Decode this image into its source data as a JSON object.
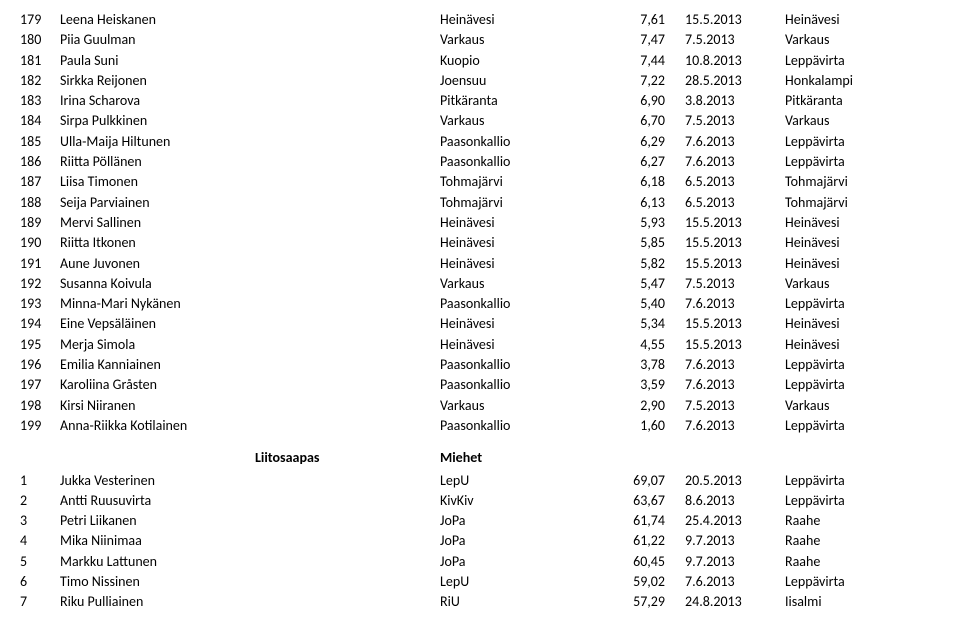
{
  "table1": {
    "rows": [
      {
        "rank": "179",
        "name": "Leena Heiskanen",
        "loc": "Heinävesi",
        "score": "7,61",
        "date": "15.5.2013",
        "place": "Heinävesi"
      },
      {
        "rank": "180",
        "name": "Piia Guulman",
        "loc": "Varkaus",
        "score": "7,47",
        "date": "7.5.2013",
        "place": "Varkaus"
      },
      {
        "rank": "181",
        "name": "Paula Suni",
        "loc": "Kuopio",
        "score": "7,44",
        "date": "10.8.2013",
        "place": "Leppävirta"
      },
      {
        "rank": "182",
        "name": "Sirkka Reijonen",
        "loc": "Joensuu",
        "score": "7,22",
        "date": "28.5.2013",
        "place": "Honkalampi"
      },
      {
        "rank": "183",
        "name": "Irina Scharova",
        "loc": "Pitkäranta",
        "score": "6,90",
        "date": "3.8.2013",
        "place": "Pitkäranta"
      },
      {
        "rank": "184",
        "name": "Sirpa Pulkkinen",
        "loc": "Varkaus",
        "score": "6,70",
        "date": "7.5.2013",
        "place": "Varkaus"
      },
      {
        "rank": "185",
        "name": "Ulla-Maija Hiltunen",
        "loc": "Paasonkallio",
        "score": "6,29",
        "date": "7.6.2013",
        "place": "Leppävirta"
      },
      {
        "rank": "186",
        "name": "Riitta Pöllänen",
        "loc": "Paasonkallio",
        "score": "6,27",
        "date": "7.6.2013",
        "place": "Leppävirta"
      },
      {
        "rank": "187",
        "name": "Liisa Timonen",
        "loc": "Tohmajärvi",
        "score": "6,18",
        "date": "6.5.2013",
        "place": "Tohmajärvi"
      },
      {
        "rank": "188",
        "name": "Seija Parviainen",
        "loc": "Tohmajärvi",
        "score": "6,13",
        "date": "6.5.2013",
        "place": "Tohmajärvi"
      },
      {
        "rank": "189",
        "name": "Mervi Sallinen",
        "loc": "Heinävesi",
        "score": "5,93",
        "date": "15.5.2013",
        "place": "Heinävesi"
      },
      {
        "rank": "190",
        "name": "Riitta Itkonen",
        "loc": "Heinävesi",
        "score": "5,85",
        "date": "15.5.2013",
        "place": "Heinävesi"
      },
      {
        "rank": "191",
        "name": "Aune Juvonen",
        "loc": "Heinävesi",
        "score": "5,82",
        "date": "15.5.2013",
        "place": "Heinävesi"
      },
      {
        "rank": "192",
        "name": "Susanna Koivula",
        "loc": "Varkaus",
        "score": "5,47",
        "date": "7.5.2013",
        "place": "Varkaus"
      },
      {
        "rank": "193",
        "name": "Minna-Mari Nykänen",
        "loc": "Paasonkallio",
        "score": "5,40",
        "date": "7.6.2013",
        "place": "Leppävirta"
      },
      {
        "rank": "194",
        "name": "Eine Vepsäläinen",
        "loc": "Heinävesi",
        "score": "5,34",
        "date": "15.5.2013",
        "place": "Heinävesi"
      },
      {
        "rank": "195",
        "name": "Merja Simola",
        "loc": "Heinävesi",
        "score": "4,55",
        "date": "15.5.2013",
        "place": "Heinävesi"
      },
      {
        "rank": "196",
        "name": "Emilia Kanniainen",
        "loc": "Paasonkallio",
        "score": "3,78",
        "date": "7.6.2013",
        "place": "Leppävirta"
      },
      {
        "rank": "197",
        "name": "Karoliina Gråsten",
        "loc": "Paasonkallio",
        "score": "3,59",
        "date": "7.6.2013",
        "place": "Leppävirta"
      },
      {
        "rank": "198",
        "name": "Kirsi Niiranen",
        "loc": "Varkaus",
        "score": "2,90",
        "date": "7.5.2013",
        "place": "Varkaus"
      },
      {
        "rank": "199",
        "name": "Anna-Riikka Kotilainen",
        "loc": "Paasonkallio",
        "score": "1,60",
        "date": "7.6.2013",
        "place": "Leppävirta"
      }
    ]
  },
  "section2": {
    "category": "Liitosaapas",
    "group": "Miehet"
  },
  "table2": {
    "rows": [
      {
        "rank": "1",
        "name": "Jukka Vesterinen",
        "loc": "LepU",
        "score": "69,07",
        "date": "20.5.2013",
        "place": "Leppävirta"
      },
      {
        "rank": "2",
        "name": "Antti Ruusuvirta",
        "loc": "KivKiv",
        "score": "63,67",
        "date": "8.6.2013",
        "place": "Leppävirta"
      },
      {
        "rank": "3",
        "name": "Petri Liikanen",
        "loc": "JoPa",
        "score": "61,74",
        "date": "25.4.2013",
        "place": "Raahe"
      },
      {
        "rank": "4",
        "name": "Mika Niinimaa",
        "loc": "JoPa",
        "score": "61,22",
        "date": "9.7.2013",
        "place": "Raahe"
      },
      {
        "rank": "5",
        "name": "Markku Lattunen",
        "loc": "JoPa",
        "score": "60,45",
        "date": "9.7.2013",
        "place": "Raahe"
      },
      {
        "rank": "6",
        "name": "Timo Nissinen",
        "loc": "LepU",
        "score": "59,02",
        "date": "7.6.2013",
        "place": "Leppävirta"
      },
      {
        "rank": "7",
        "name": "Riku Pulliainen",
        "loc": "RiU",
        "score": "57,29",
        "date": "24.8.2013",
        "place": "Iisalmi"
      }
    ]
  }
}
